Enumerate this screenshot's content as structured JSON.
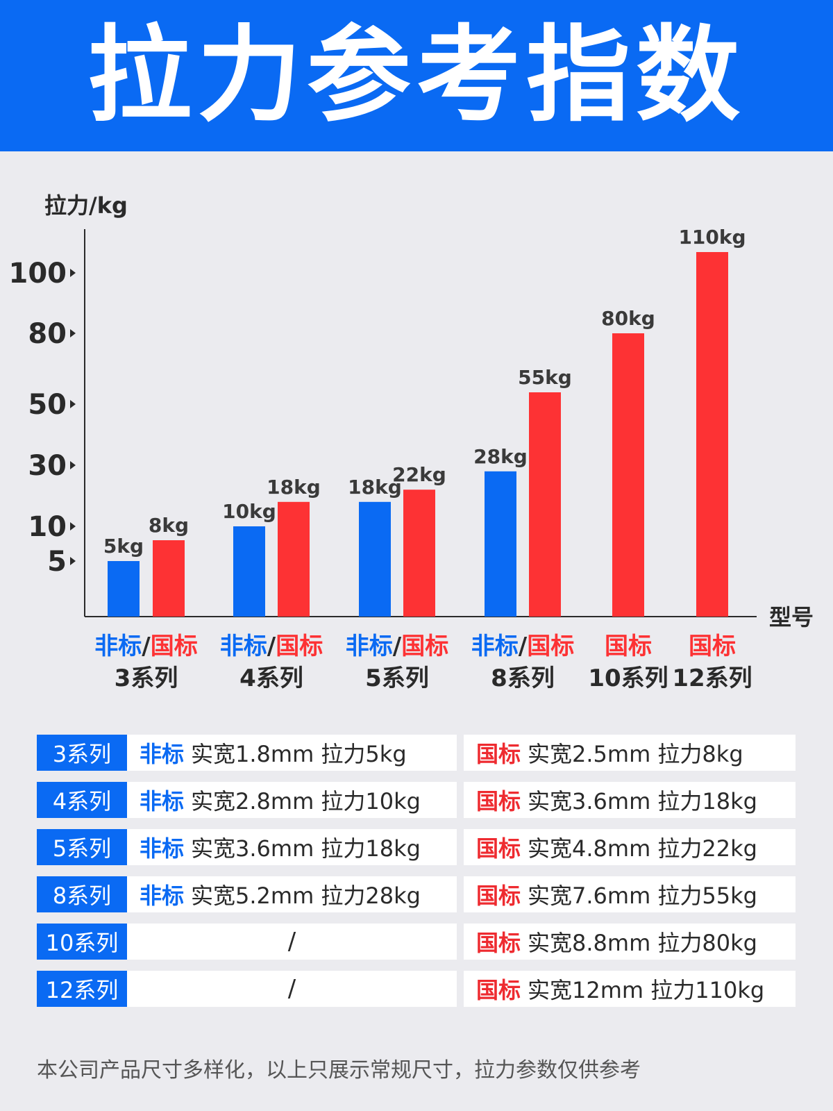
{
  "title": "拉力参考指数",
  "colors": {
    "banner": "#0a6af3",
    "non_standard": "#0a6af3",
    "national_standard": "#fd3234",
    "text": "#2a2a2a"
  },
  "chart_data": {
    "type": "bar",
    "ylabel": "拉力/kg",
    "xlabel": "型号",
    "y_ticks": [
      5,
      10,
      30,
      50,
      80,
      100
    ],
    "categories": [
      {
        "lines": [
          [
            "非标",
            "blue"
          ],
          [
            "/",
            "dark"
          ],
          [
            "国标",
            "red"
          ]
        ],
        "name": "3系列"
      },
      {
        "lines": [
          [
            "非标",
            "blue"
          ],
          [
            "/",
            "dark"
          ],
          [
            "国标",
            "red"
          ]
        ],
        "name": "4系列"
      },
      {
        "lines": [
          [
            "非标",
            "blue"
          ],
          [
            "/",
            "dark"
          ],
          [
            "国标",
            "red"
          ]
        ],
        "name": "5系列"
      },
      {
        "lines": [
          [
            "非标",
            "blue"
          ],
          [
            "/",
            "dark"
          ],
          [
            "国标",
            "red"
          ]
        ],
        "name": "8系列"
      },
      {
        "lines": [
          [
            "国标",
            "red"
          ]
        ],
        "name": "10系列"
      },
      {
        "lines": [
          [
            "国标",
            "red"
          ]
        ],
        "name": "12系列"
      }
    ],
    "series": [
      {
        "key": "non_standard",
        "values": [
          5,
          10,
          18,
          28,
          null,
          null
        ],
        "labels": [
          "5kg",
          "10kg",
          "18kg",
          "28kg",
          "",
          ""
        ]
      },
      {
        "key": "national_standard",
        "values": [
          8,
          18,
          22,
          55,
          80,
          110
        ],
        "labels": [
          "8kg",
          "18kg",
          "22kg",
          "55kg",
          "80kg",
          "110kg"
        ]
      }
    ]
  },
  "spec_rows": [
    {
      "series": "3系列",
      "left_tag": "非标",
      "left_text": "实宽1.8mm 拉力5kg",
      "right_tag": "国标",
      "right_text": "实宽2.5mm 拉力8kg"
    },
    {
      "series": "4系列",
      "left_tag": "非标",
      "left_text": "实宽2.8mm 拉力10kg",
      "right_tag": "国标",
      "right_text": "实宽3.6mm 拉力18kg"
    },
    {
      "series": "5系列",
      "left_tag": "非标",
      "left_text": "实宽3.6mm 拉力18kg",
      "right_tag": "国标",
      "right_text": "实宽4.8mm 拉力22kg"
    },
    {
      "series": "8系列",
      "left_tag": "非标",
      "left_text": "实宽5.2mm 拉力28kg",
      "right_tag": "国标",
      "right_text": "实宽7.6mm 拉力55kg"
    },
    {
      "series": "10系列",
      "left_tag": "",
      "left_text": "/",
      "right_tag": "国标",
      "right_text": "实宽8.8mm 拉力80kg"
    },
    {
      "series": "12系列",
      "left_tag": "",
      "left_text": "/",
      "right_tag": "国标",
      "right_text": "实宽12mm 拉力110kg"
    }
  ],
  "footnote": "本公司产品尺寸多样化，以上只展示常规尺寸，拉力参数仅供参考"
}
